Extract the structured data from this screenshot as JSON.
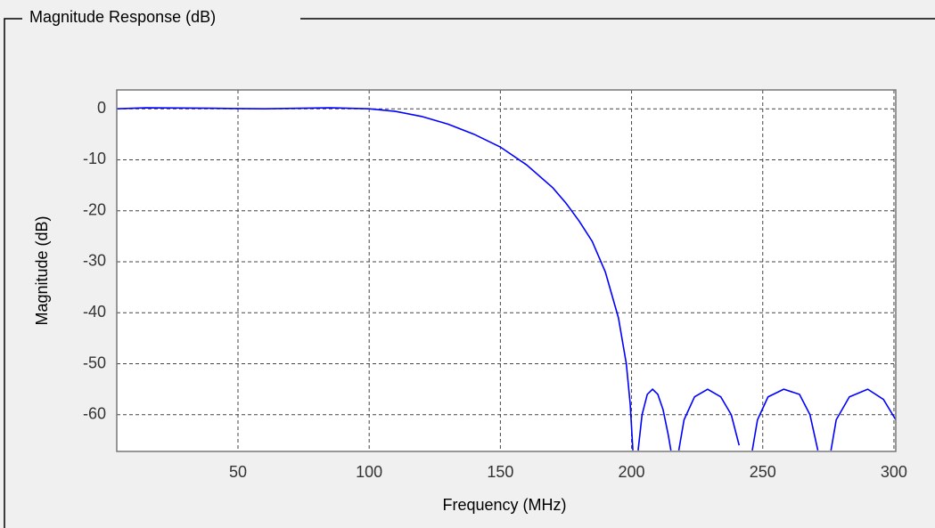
{
  "chart_data": {
    "type": "line",
    "title": "Magnitude Response (dB)",
    "x_label": "Frequency (MHz)",
    "y_label": "Magnitude (dB)",
    "x": [
      3.8,
      15,
      40,
      60,
      85,
      100,
      110,
      120,
      130,
      140,
      150,
      160,
      170,
      175,
      180,
      185,
      190,
      195,
      198,
      199.5,
      200.5,
      201,
      202.5,
      204,
      206,
      208,
      210,
      212,
      214,
      215,
      216,
      218,
      220,
      224,
      229,
      234,
      238,
      241,
      242,
      246,
      248,
      252,
      258,
      264,
      268,
      271,
      273,
      276,
      278,
      283,
      290,
      296,
      300.7
    ],
    "values": [
      0,
      0.2,
      0.1,
      0,
      0.2,
      0,
      -0.5,
      -1.5,
      -3,
      -5,
      -7.5,
      -11,
      -15.5,
      -18.5,
      -22,
      -26,
      -32,
      -41,
      -50,
      -58,
      -67,
      null,
      -67,
      -60,
      -56,
      -55,
      -56,
      -59,
      -64,
      -67,
      null,
      -67,
      -61,
      -56.5,
      -55,
      -56.5,
      -60,
      -66,
      null,
      -67,
      -61,
      -56.5,
      -55,
      -56,
      -60,
      -67,
      null,
      -67,
      -61,
      -56.5,
      -55,
      -57,
      -61
    ],
    "color": "#0000ff",
    "xlim": [
      3.8,
      300.7
    ],
    "xticks": [
      50,
      100,
      150,
      200,
      250,
      300
    ],
    "ylim": [
      -67.2,
      3.7
    ],
    "yticks": [
      0,
      -10,
      -20,
      -30,
      -40,
      -50,
      -60
    ],
    "grid": true
  }
}
